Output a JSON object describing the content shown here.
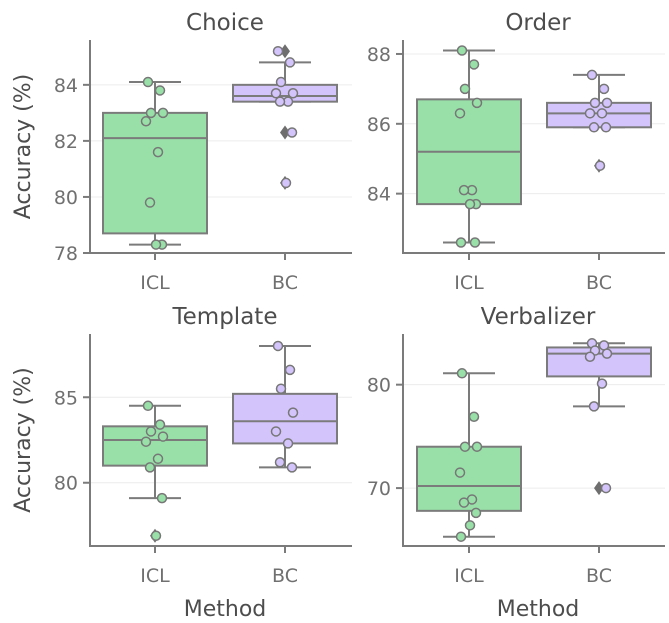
{
  "chart_data": [
    {
      "type": "box",
      "title": "Choice",
      "xlabel": "",
      "ylabel": "Accuracy (%)",
      "categories": [
        "ICL",
        "BC"
      ],
      "ylim": [
        78,
        85.6
      ],
      "yticks": [
        78,
        80,
        82,
        84
      ],
      "colors": {
        "ICL": "#98e0a8",
        "BC": "#d4c4fc"
      },
      "boxes": [
        {
          "category": "ICL",
          "q1": 78.7,
          "median": 82.1,
          "q3": 83.0,
          "whisker_low": 78.3,
          "whisker_high": 84.1,
          "outliers": []
        },
        {
          "category": "BC",
          "q1": 83.4,
          "median": 83.6,
          "q3": 84.0,
          "whisker_low": 83.4,
          "whisker_high": 84.8,
          "outliers": [
            85.2,
            82.3,
            80.5
          ]
        }
      ],
      "points": {
        "ICL": [
          84.1,
          83.8,
          83.0,
          83.0,
          82.7,
          81.6,
          79.8,
          78.3,
          78.3
        ],
        "BC": [
          85.2,
          84.8,
          84.1,
          83.7,
          83.7,
          83.4,
          83.4,
          82.3,
          80.5
        ]
      }
    },
    {
      "type": "box",
      "title": "Order",
      "xlabel": "",
      "ylabel": "",
      "categories": [
        "ICL",
        "BC"
      ],
      "ylim": [
        82.3,
        88.4
      ],
      "yticks": [
        84,
        86,
        88
      ],
      "colors": {
        "ICL": "#98e0a8",
        "BC": "#d4c4fc"
      },
      "boxes": [
        {
          "category": "ICL",
          "q1": 83.7,
          "median": 85.2,
          "q3": 86.7,
          "whisker_low": 82.6,
          "whisker_high": 88.1,
          "outliers": []
        },
        {
          "category": "BC",
          "q1": 85.9,
          "median": 86.3,
          "q3": 86.6,
          "whisker_low": 85.9,
          "whisker_high": 87.4,
          "outliers": [
            84.8
          ]
        }
      ],
      "points": {
        "ICL": [
          88.1,
          87.7,
          87.0,
          86.6,
          86.3,
          84.1,
          84.1,
          83.7,
          83.7,
          82.6,
          82.6
        ],
        "BC": [
          87.4,
          87.0,
          86.6,
          86.6,
          86.3,
          86.3,
          85.9,
          85.9,
          84.8
        ]
      }
    },
    {
      "type": "box",
      "title": "Template",
      "xlabel": "Method",
      "ylabel": "Accuracy (%)",
      "categories": [
        "ICL",
        "BC"
      ],
      "ylim": [
        76.3,
        88.7
      ],
      "yticks": [
        80,
        85
      ],
      "colors": {
        "ICL": "#98e0a8",
        "BC": "#d4c4fc"
      },
      "boxes": [
        {
          "category": "ICL",
          "q1": 81.0,
          "median": 82.5,
          "q3": 83.3,
          "whisker_low": 79.1,
          "whisker_high": 84.5,
          "outliers": [
            76.9
          ]
        },
        {
          "category": "BC",
          "q1": 82.3,
          "median": 83.6,
          "q3": 85.2,
          "whisker_low": 80.9,
          "whisker_high": 88.0,
          "outliers": []
        }
      ],
      "points": {
        "ICL": [
          84.5,
          83.4,
          83.0,
          82.7,
          82.4,
          81.4,
          80.9,
          79.1,
          76.9
        ],
        "BC": [
          88.0,
          86.6,
          85.5,
          84.1,
          83.0,
          82.3,
          81.2,
          80.9
        ]
      }
    },
    {
      "type": "box",
      "title": "Verbalizer",
      "xlabel": "Method",
      "ylabel": "",
      "categories": [
        "ICL",
        "BC"
      ],
      "ylim": [
        64.4,
        84.9
      ],
      "yticks": [
        70,
        80
      ],
      "colors": {
        "ICL": "#98e0a8",
        "BC": "#d4c4fc"
      },
      "boxes": [
        {
          "category": "ICL",
          "q1": 67.8,
          "median": 70.2,
          "q3": 74.0,
          "whisker_low": 65.3,
          "whisker_high": 81.1,
          "outliers": []
        },
        {
          "category": "BC",
          "q1": 80.8,
          "median": 83.0,
          "q3": 83.6,
          "whisker_low": 77.9,
          "whisker_high": 84.0,
          "outliers": [
            70.0
          ]
        }
      ],
      "points": {
        "ICL": [
          81.1,
          76.9,
          74.0,
          74.0,
          71.5,
          68.9,
          68.6,
          67.6,
          66.4,
          65.3
        ],
        "BC": [
          84.0,
          83.8,
          83.3,
          83.0,
          82.7,
          80.1,
          77.9,
          70.0
        ]
      }
    }
  ]
}
